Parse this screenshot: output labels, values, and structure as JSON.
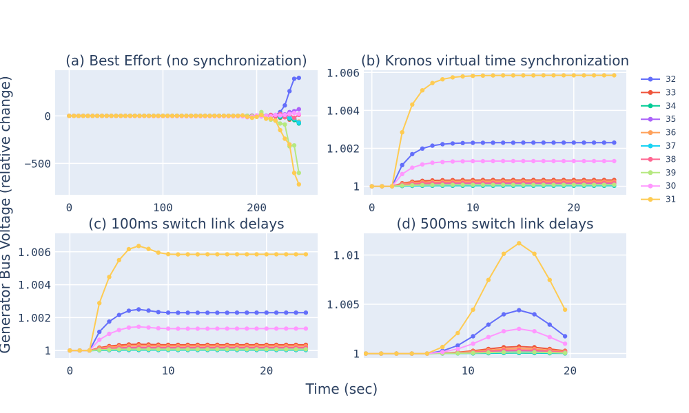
{
  "x_axis_title": "Time (sec)",
  "y_axis_title": "Generator Bus Voltage (relative change)",
  "legend": [
    {
      "name": "32",
      "color": "#636efa"
    },
    {
      "name": "33",
      "color": "#ef553b"
    },
    {
      "name": "34",
      "color": "#00cc96"
    },
    {
      "name": "35",
      "color": "#ab63fa"
    },
    {
      "name": "36",
      "color": "#ffa15a"
    },
    {
      "name": "37",
      "color": "#19d3f3"
    },
    {
      "name": "38",
      "color": "#ff6692"
    },
    {
      "name": "39",
      "color": "#b6e880"
    },
    {
      "name": "30",
      "color": "#ff97ff"
    },
    {
      "name": "31",
      "color": "#fecb52"
    }
  ],
  "chart_data": [
    {
      "type": "line",
      "title": "(a) Best Effort (no synchronization)",
      "xlim": [
        -15,
        265
      ],
      "ylim": [
        -830,
        480
      ],
      "xticks": [
        {
          "v": 0,
          "label": "0"
        },
        {
          "v": 100,
          "label": "100"
        },
        {
          "v": 200,
          "label": "200"
        }
      ],
      "yticks": [
        {
          "v": 0,
          "label": "0"
        },
        {
          "v": -500,
          "label": "−500"
        }
      ],
      "gen": {
        "type": "linear",
        "count": 51,
        "start": 0,
        "step": 5
      },
      "series": [
        {
          "name": "32",
          "color": "#636efa",
          "pts": [
            [
              0,
              0
            ],
            [
              180,
              0
            ],
            [
              185,
              2
            ],
            [
              190,
              0
            ],
            [
              195,
              2
            ],
            [
              200,
              0
            ],
            [
              205,
              5
            ],
            [
              210,
              2
            ],
            [
              215,
              8
            ],
            [
              220,
              10
            ],
            [
              225,
              40
            ],
            [
              230,
              110
            ],
            [
              235,
              260
            ],
            [
              240,
              390
            ],
            [
              245,
              400
            ]
          ]
        },
        {
          "name": "33",
          "color": "#ef553b",
          "pts": [
            [
              0,
              0
            ],
            [
              200,
              0
            ],
            [
              205,
              -5
            ],
            [
              210,
              0
            ],
            [
              215,
              -10
            ],
            [
              220,
              0
            ],
            [
              225,
              -20
            ],
            [
              230,
              -10
            ],
            [
              235,
              -40
            ],
            [
              240,
              -30
            ],
            [
              245,
              -70
            ],
            [
              248,
              -60
            ]
          ]
        },
        {
          "name": "34",
          "color": "#00cc96",
          "pts": [
            [
              0,
              0
            ],
            [
              200,
              0
            ],
            [
              205,
              -3
            ],
            [
              210,
              0
            ],
            [
              215,
              -8
            ],
            [
              220,
              0
            ],
            [
              225,
              -15
            ],
            [
              230,
              -5
            ],
            [
              235,
              -30
            ],
            [
              240,
              -45
            ],
            [
              245,
              -80
            ],
            [
              248,
              -110
            ]
          ]
        },
        {
          "name": "35",
          "color": "#ab63fa",
          "pts": [
            [
              0,
              0
            ],
            [
              200,
              0
            ],
            [
              205,
              5
            ],
            [
              210,
              0
            ],
            [
              215,
              10
            ],
            [
              220,
              5
            ],
            [
              225,
              20
            ],
            [
              230,
              15
            ],
            [
              235,
              40
            ],
            [
              240,
              50
            ],
            [
              245,
              70
            ],
            [
              248,
              80
            ]
          ]
        },
        {
          "name": "36",
          "color": "#ffa15a",
          "pts": [
            [
              0,
              0
            ],
            [
              200,
              0
            ],
            [
              210,
              -5
            ],
            [
              215,
              5
            ],
            [
              220,
              -5
            ],
            [
              225,
              10
            ],
            [
              230,
              -10
            ],
            [
              235,
              -20
            ],
            [
              240,
              -30
            ],
            [
              245,
              -60
            ],
            [
              248,
              -50
            ]
          ]
        },
        {
          "name": "37",
          "color": "#19d3f3",
          "pts": [
            [
              0,
              0
            ],
            [
              200,
              0
            ],
            [
              210,
              -3
            ],
            [
              220,
              5
            ],
            [
              230,
              -10
            ],
            [
              240,
              -30
            ],
            [
              245,
              -70
            ],
            [
              248,
              -90
            ]
          ]
        },
        {
          "name": "38",
          "color": "#ff6692",
          "pts": [
            [
              0,
              0
            ],
            [
              200,
              0
            ],
            [
              205,
              5
            ],
            [
              210,
              -5
            ],
            [
              215,
              10
            ],
            [
              220,
              -10
            ],
            [
              225,
              20
            ],
            [
              230,
              -15
            ],
            [
              235,
              15
            ],
            [
              240,
              -20
            ],
            [
              245,
              10
            ],
            [
              248,
              -10
            ]
          ]
        },
        {
          "name": "39",
          "color": "#b6e880",
          "pts": [
            [
              0,
              0
            ],
            [
              190,
              0
            ],
            [
              195,
              -5
            ],
            [
              200,
              -10
            ],
            [
              205,
              40
            ],
            [
              210,
              -20
            ],
            [
              215,
              -40
            ],
            [
              220,
              -50
            ],
            [
              225,
              -80
            ],
            [
              230,
              -90
            ],
            [
              235,
              -320
            ],
            [
              240,
              -310
            ],
            [
              245,
              -600
            ],
            [
              248,
              -650
            ]
          ]
        },
        {
          "name": "30",
          "color": "#ff97ff",
          "pts": [
            [
              0,
              0
            ],
            [
              185,
              -5
            ],
            [
              190,
              -15
            ],
            [
              195,
              -10
            ],
            [
              200,
              5
            ],
            [
              205,
              -5
            ],
            [
              210,
              0
            ],
            [
              215,
              -5
            ],
            [
              220,
              10
            ],
            [
              225,
              5
            ],
            [
              230,
              10
            ],
            [
              235,
              20
            ],
            [
              240,
              30
            ],
            [
              245,
              20
            ],
            [
              248,
              30
            ]
          ]
        },
        {
          "name": "31",
          "color": "#fecb52",
          "pts": [
            [
              0,
              0
            ],
            [
              180,
              0
            ],
            [
              185,
              5
            ],
            [
              190,
              -10
            ],
            [
              195,
              -20
            ],
            [
              200,
              -10
            ],
            [
              205,
              10
            ],
            [
              210,
              -30
            ],
            [
              215,
              -30
            ],
            [
              220,
              -50
            ],
            [
              225,
              -150
            ],
            [
              230,
              -240
            ],
            [
              235,
              -300
            ],
            [
              240,
              -600
            ],
            [
              245,
              -720
            ],
            [
              248,
              -660
            ]
          ]
        }
      ]
    },
    {
      "type": "line",
      "title": "(b) Kronos virtual time synchronization",
      "xlim": [
        -0.8,
        25.2
      ],
      "ylim": [
        0.99955,
        1.00612
      ],
      "xticks": [
        {
          "v": 0,
          "label": "0"
        },
        {
          "v": 10,
          "label": "10"
        },
        {
          "v": 20,
          "label": "20"
        }
      ],
      "yticks": [
        {
          "v": 1,
          "label": "1"
        },
        {
          "v": 1.002,
          "label": "1.002"
        },
        {
          "v": 1.004,
          "label": "1.004"
        },
        {
          "v": 1.006,
          "label": "1.006"
        }
      ],
      "gen": {
        "type": "saturating",
        "count": 25,
        "start": 0,
        "step": 1,
        "t0": 2,
        "tau": 1.5
      },
      "series": [
        {
          "name": "32",
          "color": "#636efa",
          "final": 1.0023
        },
        {
          "name": "33",
          "color": "#ef553b",
          "final": 1.00033
        },
        {
          "name": "34",
          "color": "#00cc96",
          "final": 1.00003
        },
        {
          "name": "35",
          "color": "#ab63fa",
          "final": 1.00013
        },
        {
          "name": "36",
          "color": "#ffa15a",
          "final": 1.00025
        },
        {
          "name": "37",
          "color": "#19d3f3",
          "final": 1.00005
        },
        {
          "name": "38",
          "color": "#ff6692",
          "final": 1.00018
        },
        {
          "name": "39",
          "color": "#b6e880",
          "final": 1.00008
        },
        {
          "name": "30",
          "color": "#ff97ff",
          "final": 1.00133
        },
        {
          "name": "31",
          "color": "#fecb52",
          "final": 1.00585
        }
      ]
    },
    {
      "type": "line",
      "title": "(c) 100ms switch link delays",
      "xlim": [
        -1.5,
        25.2
      ],
      "ylim": [
        0.99955,
        1.00712
      ],
      "xticks": [
        {
          "v": 0,
          "label": "0"
        },
        {
          "v": 10,
          "label": "10"
        },
        {
          "v": 20,
          "label": "20"
        }
      ],
      "yticks": [
        {
          "v": 1,
          "label": "1"
        },
        {
          "v": 1.002,
          "label": "1.002"
        },
        {
          "v": 1.004,
          "label": "1.004"
        },
        {
          "v": 1.006,
          "label": "1.006"
        }
      ],
      "gen": {
        "type": "overshoot",
        "count": 25,
        "start": 0,
        "step": 1,
        "t0": 2,
        "tau": 1.5,
        "overshoot": 0.13,
        "ocenter": 6.5,
        "owidth": 2
      },
      "series": [
        {
          "name": "32",
          "color": "#636efa",
          "final": 1.0023
        },
        {
          "name": "33",
          "color": "#ef553b",
          "final": 1.00035
        },
        {
          "name": "34",
          "color": "#00cc96",
          "final": 1.00003
        },
        {
          "name": "35",
          "color": "#ab63fa",
          "final": 1.00013
        },
        {
          "name": "36",
          "color": "#ffa15a",
          "final": 1.00027
        },
        {
          "name": "37",
          "color": "#19d3f3",
          "final": 1.00005
        },
        {
          "name": "38",
          "color": "#ff6692",
          "final": 1.00018
        },
        {
          "name": "39",
          "color": "#b6e880",
          "final": 1.00008
        },
        {
          "name": "30",
          "color": "#ff97ff",
          "final": 1.00133
        },
        {
          "name": "31",
          "color": "#fecb52",
          "final": 1.00585
        }
      ]
    },
    {
      "type": "line",
      "title": "(d) 500ms switch link delays",
      "xlim": [
        -0.2,
        25.5
      ],
      "ylim": [
        0.99955,
        1.0122
      ],
      "xticks": [
        {
          "v": 10,
          "label": "10"
        },
        {
          "v": 20,
          "label": "20"
        }
      ],
      "yticks": [
        {
          "v": 1,
          "label": "1"
        },
        {
          "v": 1.005,
          "label": "1.005"
        },
        {
          "v": 1.01,
          "label": "1.01"
        }
      ],
      "gen": {
        "type": "bump",
        "count": 14,
        "start": 0,
        "step": 1.5,
        "t0": 6,
        "peak": 15,
        "width": 4.8
      },
      "series": [
        {
          "name": "32",
          "color": "#636efa",
          "final": 1.0044
        },
        {
          "name": "33",
          "color": "#ef553b",
          "final": 1.0007
        },
        {
          "name": "34",
          "color": "#00cc96",
          "final": 1.00005
        },
        {
          "name": "35",
          "color": "#ab63fa",
          "final": 1.00025
        },
        {
          "name": "36",
          "color": "#ffa15a",
          "final": 1.0005
        },
        {
          "name": "37",
          "color": "#19d3f3",
          "final": 1.0001
        },
        {
          "name": "38",
          "color": "#ff6692",
          "final": 1.00035
        },
        {
          "name": "39",
          "color": "#b6e880",
          "final": 1.00015
        },
        {
          "name": "30",
          "color": "#ff97ff",
          "final": 1.0025
        },
        {
          "name": "31",
          "color": "#fecb52",
          "final": 1.0112
        }
      ]
    }
  ]
}
